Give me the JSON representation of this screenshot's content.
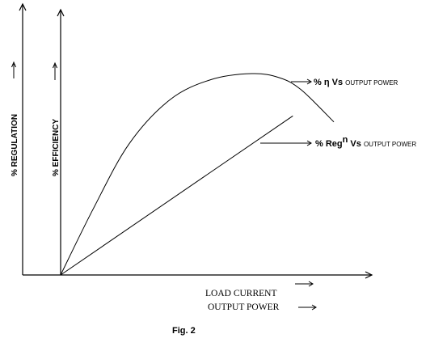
{
  "chart_data": {
    "type": "line",
    "x_axis_label_1": "LOAD CURRENT",
    "x_axis_label_2": "OUTPUT POWER",
    "y_axis_label_left": "% REGULATION",
    "y_axis_label_right": "% EFFICIENCY",
    "grid": false,
    "legend": "annotations",
    "series": [
      {
        "name": "% η Vs OUTPUT POWER",
        "shape": "rising-peak-falling",
        "x": [
          0,
          0.12,
          0.25,
          0.4,
          0.55,
          0.7,
          0.8,
          0.88,
          1.0
        ],
        "y": [
          0,
          0.33,
          0.65,
          0.87,
          0.97,
          1.0,
          0.98,
          0.92,
          0.76
        ]
      },
      {
        "name": "% Regⁿ Vs OUTPUT POWER",
        "shape": "linear",
        "x": [
          0,
          0.85
        ],
        "y": [
          0,
          0.79
        ]
      }
    ]
  },
  "annotations": {
    "efficiency_prefix": "% η Vs ",
    "efficiency_suffix": "OUTPUT POWER",
    "regulation_prefix": "% Reg",
    "regulation_sup": "n",
    "regulation_mid": " Vs ",
    "regulation_suffix": "OUTPUT POWER"
  },
  "caption": "Fig. 2"
}
